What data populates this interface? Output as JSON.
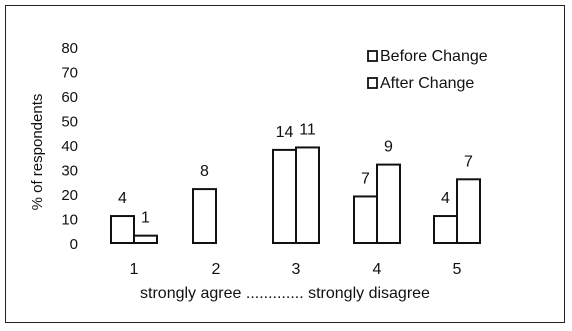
{
  "chart_data": {
    "type": "bar",
    "categories": [
      "1",
      "2",
      "3",
      "4",
      "5"
    ],
    "series": [
      {
        "name": "Before Change",
        "values": [
          11,
          22,
          38,
          19,
          11
        ],
        "labels": [
          "4",
          "8",
          "14",
          "7",
          "4"
        ]
      },
      {
        "name": "After Change",
        "values": [
          3,
          null,
          39,
          32,
          26
        ],
        "labels": [
          "1",
          "",
          "11",
          "9",
          "7"
        ]
      }
    ],
    "ylabel": "% of respondents",
    "xlabel": "strongly agree ............. strongly disagree",
    "yticks": [
      "0",
      "10",
      "20",
      "30",
      "40",
      "50",
      "60",
      "70",
      "80"
    ],
    "ylim": [
      0,
      80
    ],
    "legend_position": "top-right",
    "colors": {
      "bar_fill": "#ffffff",
      "bar_stroke": "#111111"
    }
  }
}
